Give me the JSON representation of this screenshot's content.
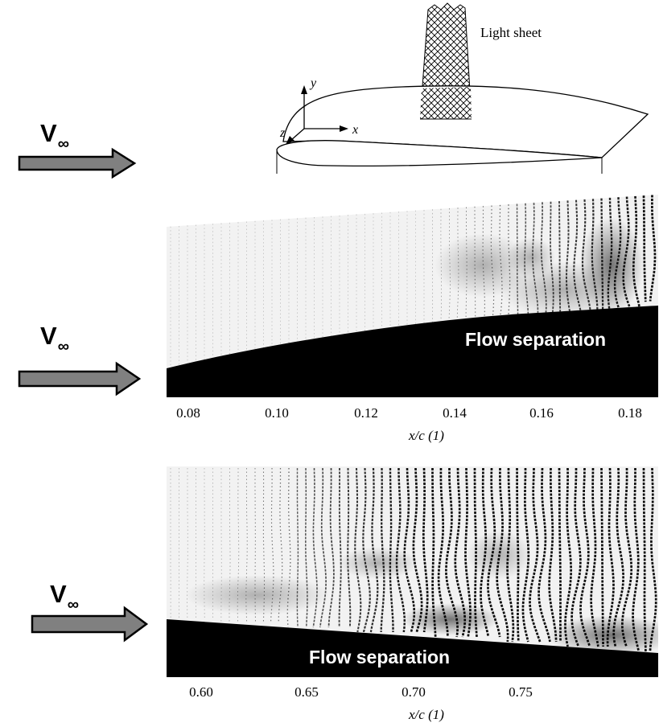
{
  "freestream_label": {
    "main": "V",
    "sub": "∞"
  },
  "top_diagram": {
    "light_sheet_label": "Light sheet",
    "axes": {
      "x": "x",
      "y": "y",
      "z": "z"
    }
  },
  "panels": [
    {
      "annotation": "Flow separation",
      "tick_labels": [
        "0.08",
        "0.10",
        "0.12",
        "0.14",
        "0.16",
        "0.18"
      ],
      "xlabel": "x/c (1)"
    },
    {
      "annotation": "Flow separation",
      "tick_labels": [
        "0.60",
        "0.65",
        "0.70",
        "0.75"
      ],
      "xlabel": "x/c (1)"
    }
  ],
  "colors": {
    "arrow_fill": "#808080",
    "surface": "#000000",
    "background": "#ffffff"
  }
}
